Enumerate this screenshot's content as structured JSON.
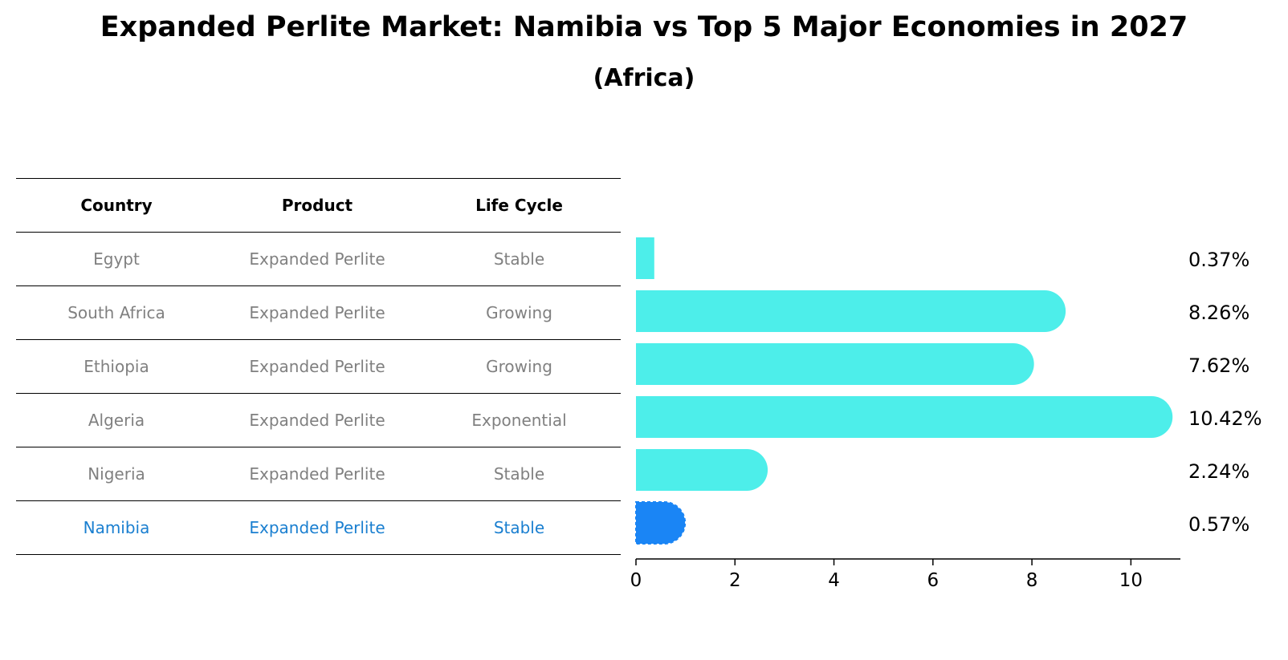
{
  "title": "Expanded Perlite Market: Namibia vs Top 5 Major Economies in 2027",
  "subtitle": "(Africa)",
  "table": {
    "headers": [
      "Country",
      "Product",
      "Life Cycle"
    ],
    "rows": [
      {
        "country": "Egypt",
        "product": "Expanded Perlite",
        "lifecycle": "Stable"
      },
      {
        "country": "South Africa",
        "product": "Expanded Perlite",
        "lifecycle": "Growing"
      },
      {
        "country": "Ethiopia",
        "product": "Expanded Perlite",
        "lifecycle": "Growing"
      },
      {
        "country": "Algeria",
        "product": "Expanded Perlite",
        "lifecycle": "Exponential"
      },
      {
        "country": "Nigeria",
        "product": "Expanded Perlite",
        "lifecycle": "Stable"
      },
      {
        "country": "Namibia",
        "product": "Expanded Perlite",
        "lifecycle": "Stable"
      }
    ]
  },
  "chart_data": {
    "type": "bar",
    "orientation": "horizontal",
    "title": "Expanded Perlite Market: Namibia vs Top 5 Major Economies in 2027",
    "subtitle": "(Africa)",
    "categories": [
      "Egypt",
      "South Africa",
      "Ethiopia",
      "Algeria",
      "Nigeria",
      "Namibia"
    ],
    "values": [
      0.37,
      8.26,
      7.62,
      10.42,
      2.24,
      0.57
    ],
    "labels": [
      "0.37%",
      "8.26%",
      "7.62%",
      "10.42%",
      "2.24%",
      "0.57%"
    ],
    "highlight": "Namibia",
    "xlim": [
      0,
      11
    ],
    "xticks": [
      0,
      2,
      4,
      6,
      8,
      10
    ],
    "xlabel": "",
    "ylabel": "",
    "grid": false
  },
  "colors": {
    "bar": "#4deeea",
    "highlight": "#1a85f5",
    "highlight_text": "#1a7fd0",
    "muted_text": "#808080"
  }
}
